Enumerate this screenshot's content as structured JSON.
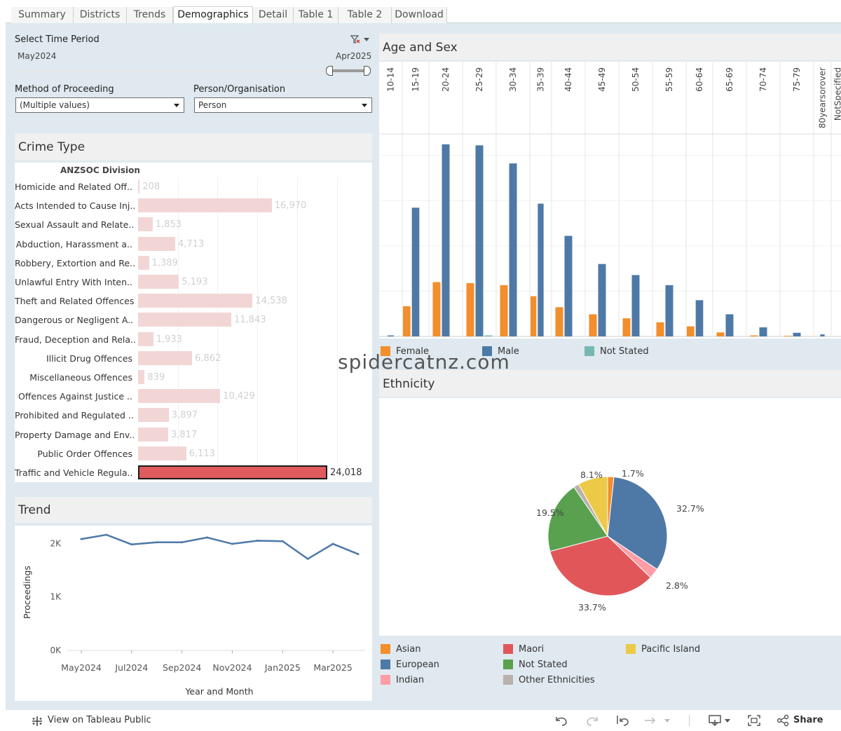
{
  "tabs": [
    "Summary",
    "Districts",
    "Trends",
    "Demographics",
    "Detail",
    "Table 1",
    "Table 2",
    "Download"
  ],
  "active_tab": "Demographics",
  "filters": {
    "time_period_label": "Select Time Period",
    "time_start": "May2024",
    "time_end": "Apr2025",
    "method_label": "Method of Proceeding",
    "method_value": "(Multiple values)",
    "person_label": "Person/Organisation",
    "person_value": "Person"
  },
  "crime_type": {
    "title": "Crime Type",
    "header": "ANZSOC Division",
    "rows": [
      {
        "label": "Homicide and Related Off..",
        "value": "208",
        "num": 208
      },
      {
        "label": "Acts Intended to Cause Inj..",
        "value": "16,970",
        "num": 16970
      },
      {
        "label": "Sexual Assault and Relate..",
        "value": "1,853",
        "num": 1853
      },
      {
        "label": "Abduction, Harassment a..",
        "value": "4,713",
        "num": 4713
      },
      {
        "label": "Robbery, Extortion and Re..",
        "value": "1,389",
        "num": 1389
      },
      {
        "label": "Unlawful Entry With Inten..",
        "value": "5,193",
        "num": 5193
      },
      {
        "label": "Theft and Related Offences",
        "value": "14,538",
        "num": 14538
      },
      {
        "label": "Dangerous or Negligent A..",
        "value": "11,843",
        "num": 11843
      },
      {
        "label": "Fraud, Deception and Rela..",
        "value": "1,933",
        "num": 1933
      },
      {
        "label": "Illicit Drug Offences",
        "value": "6,862",
        "num": 6862
      },
      {
        "label": "Miscellaneous Offences",
        "value": "839",
        "num": 839
      },
      {
        "label": "Offences Against Justice ..",
        "value": "10,429",
        "num": 10429
      },
      {
        "label": "Prohibited and Regulated ..",
        "value": "3,897",
        "num": 3897
      },
      {
        "label": "Property Damage and Env..",
        "value": "3,817",
        "num": 3817
      },
      {
        "label": "Public Order Offences",
        "value": "6,113",
        "num": 6113
      },
      {
        "label": "Traffic and Vehicle Regula..",
        "value": "24,018",
        "num": 24018
      }
    ],
    "selected": "Traffic and Vehicle Regula.."
  },
  "trend": {
    "title": "Trend",
    "chart_data": {
      "type": "line",
      "xlabel": "Year and Month",
      "ylabel": "Proceedings",
      "x": [
        "May2024",
        "Jun2024",
        "Jul2024",
        "Aug2024",
        "Sep2024",
        "Oct2024",
        "Nov2024",
        "Dec2024",
        "Jan2025",
        "Feb2025",
        "Mar2025",
        "Apr2025"
      ],
      "x_tick_labels": [
        "May2024",
        "Jul2024",
        "Sep2024",
        "Nov2024",
        "Jan2025",
        "Mar2025"
      ],
      "y_tick_labels": [
        "2K",
        "1K",
        "0K"
      ],
      "ylim": [
        0,
        2200
      ],
      "values": [
        2080,
        2160,
        1980,
        2020,
        2020,
        2110,
        1990,
        2050,
        2040,
        1710,
        1990,
        1800
      ],
      "color": "#4e79a7"
    }
  },
  "age_sex": {
    "title": "Age and Sex",
    "chart_data": {
      "type": "bar",
      "categories": [
        "10-14",
        "15-19",
        "20-24",
        "25-29",
        "30-34",
        "35-39",
        "40-44",
        "45-49",
        "50-54",
        "55-59",
        "60-64",
        "65-69",
        "70-74",
        "75-79",
        "80yearsorover",
        "NotSpecified"
      ],
      "ylim": [
        0,
        1000
      ],
      "series": [
        {
          "name": "Female",
          "color": "#f28e2b",
          "values": [
            0,
            150,
            270,
            265,
            255,
            200,
            145,
            110,
            90,
            70,
            50,
            20,
            5,
            3,
            0,
            0
          ]
        },
        {
          "name": "Male",
          "color": "#4e79a7",
          "values": [
            5,
            640,
            955,
            950,
            860,
            660,
            500,
            360,
            305,
            255,
            180,
            110,
            45,
            18,
            10,
            0
          ]
        },
        {
          "name": "Not Stated",
          "color": "#76b7b2",
          "values": [
            0,
            0,
            0,
            5,
            0,
            0,
            0,
            0,
            0,
            0,
            0,
            0,
            0,
            0,
            0,
            0
          ]
        }
      ]
    }
  },
  "ethnicity": {
    "title": "Ethnicity",
    "chart_data": {
      "type": "pie",
      "slices": [
        {
          "name": "Asian",
          "value": 1.7,
          "label": "1.7%",
          "color": "#f28e2b"
        },
        {
          "name": "European",
          "value": 32.7,
          "label": "32.7%",
          "color": "#4e79a7"
        },
        {
          "name": "Indian",
          "value": 2.8,
          "label": "2.8%",
          "color": "#ff9da7"
        },
        {
          "name": "Maori",
          "value": 33.7,
          "label": "33.7%",
          "color": "#e15759"
        },
        {
          "name": "Not Stated",
          "value": 19.5,
          "label": "19.5%",
          "color": "#59a14f"
        },
        {
          "name": "Other Ethnicities",
          "value": 1.5,
          "label": "",
          "color": "#bab0ac"
        },
        {
          "name": "Pacific Island",
          "value": 8.1,
          "label": "8.1%",
          "color": "#edc948"
        }
      ]
    }
  },
  "watermark": "spidercatnz.com",
  "footer": {
    "view_label": "View on Tableau Public",
    "share_label": "Share"
  }
}
